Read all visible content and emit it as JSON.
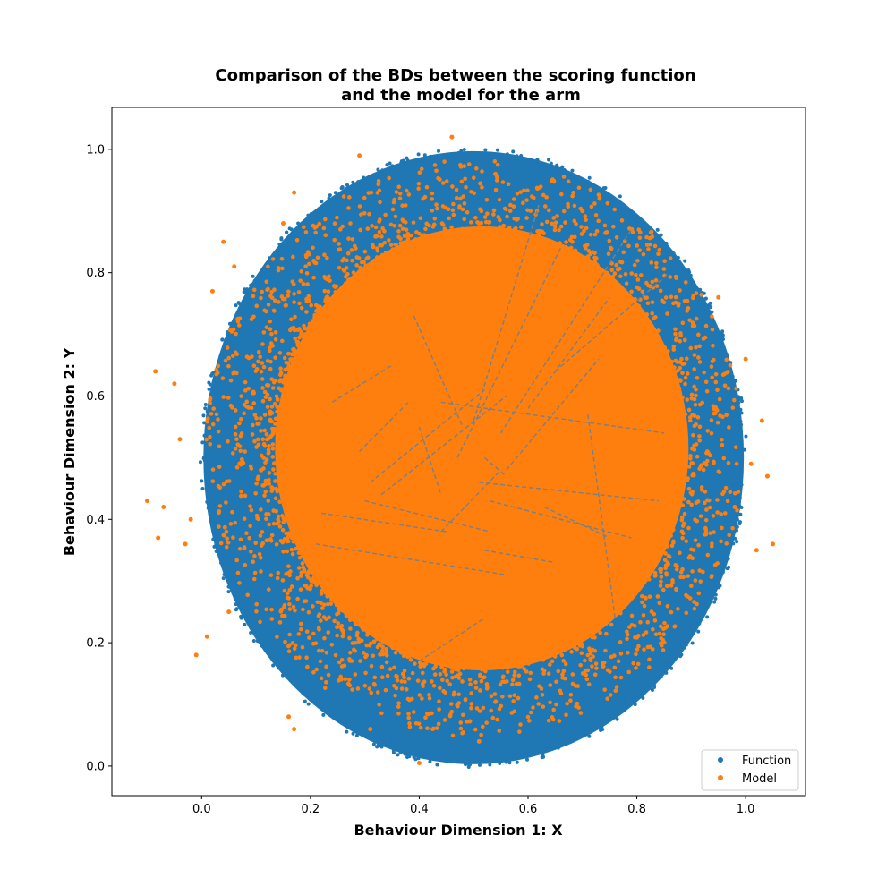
{
  "chart_data": {
    "type": "scatter",
    "title_line1": "Comparison of the BDs between the scoring function",
    "title_line2": "and the model for the arm",
    "xlabel": "Behaviour Dimension 1: X",
    "ylabel": "Behaviour Dimension 2: Y",
    "xlim": [
      -0.165,
      1.11
    ],
    "ylim": [
      -0.048,
      1.068
    ],
    "xticks": [
      0.0,
      0.2,
      0.4,
      0.6,
      0.8,
      1.0
    ],
    "yticks": [
      0.0,
      0.2,
      0.4,
      0.6,
      0.8,
      1.0
    ],
    "xtick_labels": [
      "0.0",
      "0.2",
      "0.4",
      "0.6",
      "0.8",
      "1.0"
    ],
    "ytick_labels": [
      "0.0",
      "0.2",
      "0.4",
      "0.6",
      "0.8",
      "1.0"
    ],
    "grid": false,
    "legend_position": "lower-right",
    "series": [
      {
        "name": "Function",
        "color": "#1f77b4",
        "shape": "filled disk of dense points",
        "center": [
          0.5,
          0.5
        ],
        "radius": [
          0.5,
          0.5
        ]
      },
      {
        "name": "Model",
        "color": "#ff7f0e",
        "shape": "dense core with sparse scattered halo",
        "core_center": [
          0.515,
          0.515
        ],
        "core_radius": [
          0.38,
          0.36
        ],
        "sample_outliers": [
          [
            -0.1,
            0.43
          ],
          [
            -0.085,
            0.64
          ],
          [
            -0.08,
            0.37
          ],
          [
            -0.07,
            0.42
          ],
          [
            -0.05,
            0.62
          ],
          [
            -0.04,
            0.53
          ],
          [
            -0.03,
            0.36
          ],
          [
            -0.02,
            0.4
          ],
          [
            -0.01,
            0.18
          ],
          [
            0.01,
            0.21
          ],
          [
            0.02,
            0.77
          ],
          [
            0.04,
            0.85
          ],
          [
            0.05,
            0.25
          ],
          [
            0.06,
            0.81
          ],
          [
            0.15,
            0.88
          ],
          [
            0.17,
            0.93
          ],
          [
            0.17,
            0.06
          ],
          [
            0.16,
            0.08
          ],
          [
            0.29,
            0.99
          ],
          [
            0.31,
            0.06
          ],
          [
            0.4,
            0.005
          ],
          [
            0.46,
            1.02
          ],
          [
            0.51,
            0.04
          ],
          [
            0.54,
            0.96
          ],
          [
            0.7,
            0.9
          ],
          [
            1.0,
            0.66
          ],
          [
            1.01,
            0.49
          ],
          [
            1.03,
            0.56
          ],
          [
            1.04,
            0.47
          ],
          [
            1.05,
            0.36
          ],
          [
            1.02,
            0.35
          ],
          [
            0.98,
            0.42
          ],
          [
            0.95,
            0.76
          ]
        ]
      }
    ],
    "overlay_lines": {
      "color": "#7f7f7f",
      "style": "dashed",
      "segments": [
        [
          [
            0.39,
            0.73
          ],
          [
            0.48,
            0.55
          ]
        ],
        [
          [
            0.24,
            0.59
          ],
          [
            0.35,
            0.65
          ]
        ],
        [
          [
            0.29,
            0.51
          ],
          [
            0.38,
            0.59
          ]
        ],
        [
          [
            0.31,
            0.46
          ],
          [
            0.52,
            0.61
          ]
        ],
        [
          [
            0.33,
            0.44
          ],
          [
            0.56,
            0.6
          ]
        ],
        [
          [
            0.44,
            0.59
          ],
          [
            0.85,
            0.54
          ]
        ],
        [
          [
            0.4,
            0.55
          ],
          [
            0.44,
            0.44
          ]
        ],
        [
          [
            0.47,
            0.5
          ],
          [
            0.66,
            0.84
          ]
        ],
        [
          [
            0.5,
            0.56
          ],
          [
            0.62,
            0.91
          ]
        ],
        [
          [
            0.55,
            0.54
          ],
          [
            0.79,
            0.87
          ]
        ],
        [
          [
            0.65,
            0.64
          ],
          [
            0.86,
            0.8
          ]
        ],
        [
          [
            0.6,
            0.58
          ],
          [
            0.75,
            0.76
          ]
        ],
        [
          [
            0.56,
            0.48
          ],
          [
            0.73,
            0.66
          ]
        ],
        [
          [
            0.3,
            0.43
          ],
          [
            0.53,
            0.38
          ]
        ],
        [
          [
            0.22,
            0.41
          ],
          [
            0.45,
            0.38
          ]
        ],
        [
          [
            0.21,
            0.36
          ],
          [
            0.56,
            0.31
          ]
        ],
        [
          [
            0.51,
            0.46
          ],
          [
            0.84,
            0.43
          ]
        ],
        [
          [
            0.52,
            0.5
          ],
          [
            0.56,
            0.47
          ]
        ],
        [
          [
            0.53,
            0.43
          ],
          [
            0.79,
            0.37
          ]
        ],
        [
          [
            0.63,
            0.42
          ],
          [
            0.75,
            0.37
          ]
        ],
        [
          [
            0.71,
            0.57
          ],
          [
            0.76,
            0.24
          ]
        ],
        [
          [
            0.52,
            0.35
          ],
          [
            0.65,
            0.33
          ]
        ],
        [
          [
            0.4,
            0.17
          ],
          [
            0.52,
            0.24
          ]
        ],
        [
          [
            0.44,
            0.38
          ],
          [
            0.55,
            0.48
          ]
        ]
      ]
    }
  },
  "legend": {
    "function_label": "Function",
    "model_label": "Model"
  }
}
